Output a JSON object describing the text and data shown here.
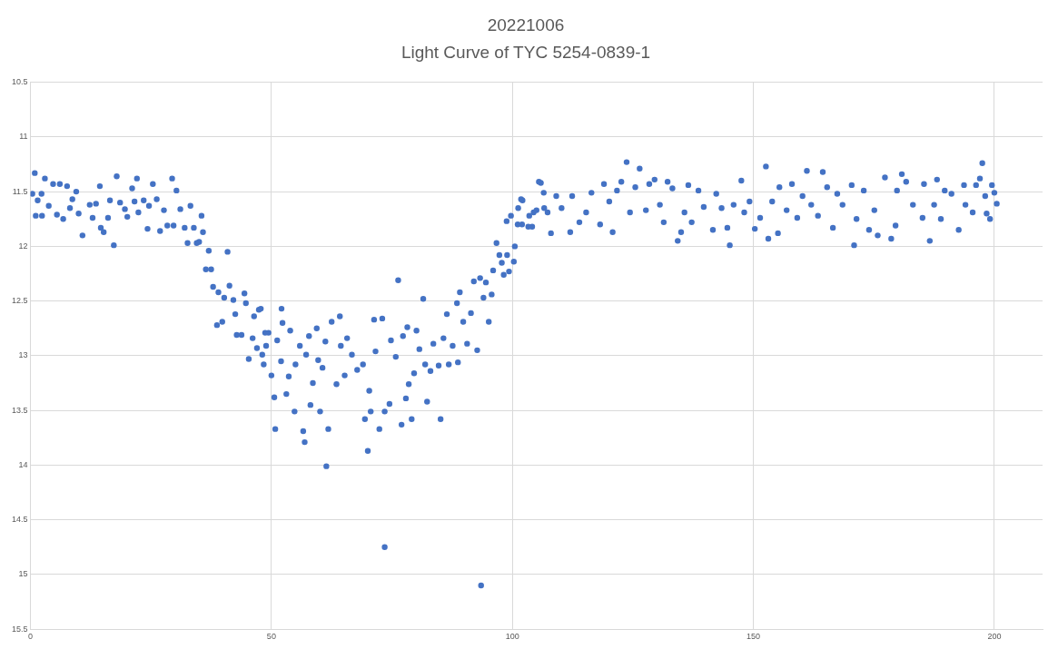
{
  "chart_data": {
    "type": "scatter",
    "title": "20221006",
    "subtitle": "Light Curve of TYC 5254-0839-1",
    "xlim": [
      0,
      210
    ],
    "xticks": [
      0,
      50,
      100,
      150,
      200
    ],
    "ylim": [
      15.5,
      10.5
    ],
    "yticks": [
      10.5,
      11,
      11.5,
      12,
      12.5,
      13,
      13.5,
      14,
      14.5,
      15,
      15.5
    ],
    "grid": true,
    "marker": "circle",
    "legend": false,
    "series": [
      {
        "color": "#4472c4",
        "x": [
          0.4,
          0.9,
          1.1,
          1.5,
          2.4,
          2.3,
          3.0,
          3.8,
          4.7,
          5.5,
          6.1,
          6.8,
          7.6,
          8.2,
          8.7,
          9.5,
          10.0,
          10.8,
          12.3,
          12.9,
          13.6,
          14.4,
          14.6,
          15.2,
          16.1,
          16.5,
          17.3,
          17.9,
          18.6,
          19.6,
          20.1,
          21.1,
          21.6,
          22.1,
          22.4,
          23.5,
          24.3,
          24.6,
          25.4,
          26.2,
          26.9,
          27.7,
          28.4,
          29.4,
          29.7,
          30.3,
          31.1,
          32.0,
          32.6,
          33.2,
          33.9,
          34.5,
          35.0,
          35.5,
          35.8,
          36.4,
          37.0,
          37.5,
          37.9,
          38.7,
          39.0,
          39.8,
          40.2,
          40.9,
          41.3,
          42.1,
          42.5,
          42.8,
          43.8,
          44.4,
          44.7,
          45.3,
          46.1,
          46.4,
          47.0,
          47.8,
          48.4,
          48.9,
          49.4,
          50.0,
          50.8,
          47.4,
          48.7,
          48.1,
          50.6,
          51.2,
          52.1,
          52.3,
          52.0,
          53.1,
          53.6,
          53.9,
          54.8,
          55.0,
          55.9,
          56.6,
          56.9,
          57.2,
          57.8,
          58.1,
          58.6,
          59.4,
          59.7,
          60.1,
          60.6,
          61.2,
          61.8,
          61.4,
          62.5,
          63.5,
          64.2,
          64.4,
          65.2,
          65.7,
          66.7,
          67.8,
          69.0,
          69.4,
          70.0,
          70.3,
          70.6,
          71.3,
          71.6,
          72.4,
          73.0,
          73.5,
          73.5,
          74.5,
          74.8,
          75.8,
          76.3,
          77.0,
          77.3,
          77.9,
          78.2,
          78.5,
          79.1,
          79.6,
          80.1,
          80.7,
          81.5,
          81.9,
          82.3,
          83.0,
          83.6,
          84.7,
          85.1,
          85.7,
          86.4,
          86.8,
          87.6,
          88.5,
          89.1,
          88.7,
          89.8,
          90.6,
          91.4,
          92.0,
          92.7,
          93.3,
          93.5,
          94.0,
          94.5,
          95.1,
          95.7,
          96.0,
          96.7,
          97.3,
          97.8,
          98.2,
          98.9,
          99.3,
          100.3,
          100.5,
          98.8,
          99.7,
          101.2,
          102.1,
          102.0,
          103.5,
          104.1,
          105.0,
          105.9,
          106.5,
          107.3,
          101.1,
          101.8,
          103.3,
          104.4,
          105.5,
          106.6,
          108.0,
          109.1,
          110.2,
          112.0,
          112.4,
          113.9,
          115.3,
          116.4,
          118.2,
          119.0,
          120.1,
          120.8,
          121.7,
          122.6,
          123.7,
          124.4,
          125.5,
          126.4,
          127.7,
          128.4,
          129.5,
          130.6,
          131.4,
          132.2,
          133.2,
          134.3,
          135.0,
          135.7,
          136.5,
          137.2,
          138.6,
          139.7,
          141.6,
          142.3,
          143.4,
          144.6,
          145.1,
          145.9,
          147.5,
          148.1,
          149.2,
          150.3,
          151.4,
          152.6,
          153.1,
          153.9,
          155.1,
          155.4,
          156.9,
          158.0,
          159.1,
          160.2,
          161.1,
          162.0,
          163.4,
          164.4,
          165.3,
          166.5,
          167.4,
          168.5,
          170.4,
          170.9,
          171.4,
          172.9,
          174.0,
          175.1,
          175.8,
          177.3,
          178.6,
          179.5,
          179.8,
          180.8,
          181.7,
          183.1,
          185.1,
          185.4,
          186.6,
          187.5,
          188.1,
          188.9,
          189.7,
          191.1,
          192.6,
          193.7,
          194.0,
          195.5,
          196.2,
          197.0,
          197.5,
          198.1,
          198.4,
          199.1,
          199.5,
          200.0,
          200.5
        ],
        "values": [
          11.52,
          11.33,
          11.72,
          11.58,
          11.72,
          11.52,
          11.38,
          11.63,
          11.43,
          11.71,
          11.43,
          11.75,
          11.45,
          11.65,
          11.57,
          11.5,
          11.7,
          11.9,
          11.62,
          11.74,
          11.61,
          11.45,
          11.83,
          11.87,
          11.74,
          11.58,
          11.99,
          11.36,
          11.6,
          11.66,
          11.73,
          11.47,
          11.59,
          11.38,
          11.69,
          11.58,
          11.84,
          11.63,
          11.43,
          11.57,
          11.86,
          11.67,
          11.81,
          11.38,
          11.81,
          11.49,
          11.66,
          11.83,
          11.97,
          11.63,
          11.83,
          11.97,
          11.96,
          11.72,
          11.87,
          12.21,
          12.04,
          12.21,
          12.37,
          12.72,
          12.42,
          12.69,
          12.47,
          12.05,
          12.36,
          12.49,
          12.62,
          12.81,
          12.81,
          12.43,
          12.52,
          13.03,
          12.84,
          12.64,
          12.93,
          12.57,
          13.08,
          12.91,
          12.79,
          13.18,
          13.67,
          12.58,
          12.79,
          12.99,
          13.38,
          12.86,
          12.57,
          12.7,
          13.05,
          13.35,
          13.19,
          12.77,
          13.51,
          13.08,
          12.91,
          13.69,
          13.79,
          12.99,
          12.82,
          13.45,
          13.25,
          12.75,
          13.04,
          13.51,
          13.11,
          12.87,
          13.67,
          14.01,
          12.69,
          13.26,
          12.64,
          12.91,
          13.18,
          12.84,
          12.99,
          13.13,
          13.08,
          13.58,
          13.87,
          13.32,
          13.51,
          12.67,
          12.96,
          13.67,
          12.66,
          13.51,
          14.75,
          13.44,
          12.86,
          13.01,
          12.31,
          13.63,
          12.82,
          13.39,
          12.74,
          13.26,
          13.58,
          13.16,
          12.77,
          12.94,
          12.48,
          13.08,
          13.42,
          13.14,
          12.89,
          13.09,
          13.58,
          12.84,
          12.62,
          13.08,
          12.91,
          12.52,
          12.42,
          13.06,
          12.69,
          12.89,
          12.61,
          12.32,
          12.95,
          12.29,
          15.1,
          12.47,
          12.33,
          12.69,
          12.44,
          12.22,
          11.97,
          12.08,
          12.15,
          12.26,
          12.08,
          12.23,
          12.14,
          12.0,
          11.77,
          11.72,
          11.65,
          11.58,
          11.8,
          11.72,
          11.82,
          11.67,
          11.42,
          11.51,
          11.69,
          11.8,
          11.57,
          11.82,
          11.69,
          11.41,
          11.65,
          11.88,
          11.54,
          11.65,
          11.87,
          11.54,
          11.78,
          11.69,
          11.51,
          11.8,
          11.43,
          11.59,
          11.87,
          11.49,
          11.41,
          11.23,
          11.69,
          11.46,
          11.29,
          11.67,
          11.43,
          11.39,
          11.62,
          11.78,
          11.41,
          11.47,
          11.95,
          11.87,
          11.69,
          11.44,
          11.78,
          11.49,
          11.64,
          11.85,
          11.52,
          11.65,
          11.83,
          11.99,
          11.62,
          11.4,
          11.69,
          11.59,
          11.84,
          11.74,
          11.27,
          11.93,
          11.59,
          11.88,
          11.46,
          11.67,
          11.43,
          11.74,
          11.54,
          11.31,
          11.62,
          11.72,
          11.32,
          11.46,
          11.83,
          11.52,
          11.62,
          11.44,
          11.99,
          11.75,
          11.49,
          11.85,
          11.67,
          11.9,
          11.37,
          11.93,
          11.81,
          11.49,
          11.34,
          11.41,
          11.62,
          11.74,
          11.43,
          11.95,
          11.62,
          11.39,
          11.75,
          11.49,
          11.52,
          11.85,
          11.44,
          11.62,
          11.69,
          11.44,
          11.38,
          11.24,
          11.54,
          11.7,
          11.75,
          11.44,
          11.51,
          11.61
        ]
      }
    ]
  }
}
